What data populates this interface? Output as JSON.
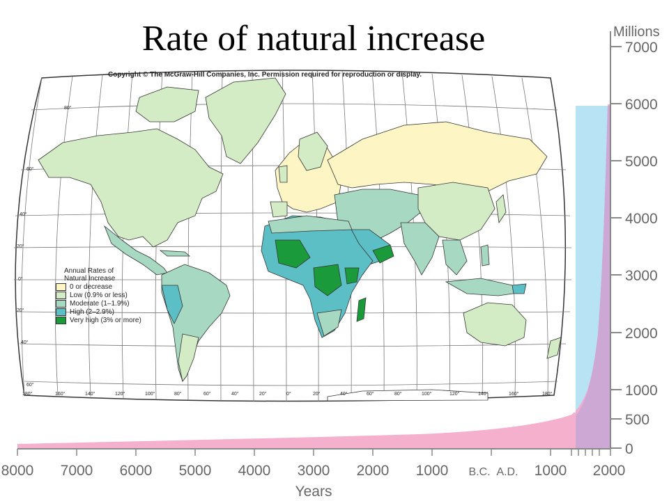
{
  "title": "Rate of natural increase",
  "copyright": "Copyright © The McGraw-Hill Companies, Inc. Permission required for reproduction or display.",
  "legend": {
    "title_line1": "Annual Rates of",
    "title_line2": "Natural Increase",
    "items": [
      {
        "label": "0 or decrease",
        "color": "#fdf6c4"
      },
      {
        "label": "Low (0.9% or less)",
        "color": "#d4ecc6"
      },
      {
        "label": "Moderate (1–1.9%)",
        "color": "#a7d9c2"
      },
      {
        "label": "High (2–2.9%)",
        "color": "#5cbfc6"
      },
      {
        "label": "Very high (3% or more)",
        "color": "#1a9a3a"
      }
    ]
  },
  "map_labels": {
    "lat": [
      "80°",
      "60°",
      "40°",
      "20°",
      "0°",
      "20°",
      "40°",
      "60°"
    ],
    "lon": [
      "180°",
      "160°",
      "140°",
      "120°",
      "100°",
      "80°",
      "60°",
      "40°",
      "20°",
      "0°",
      "20°",
      "40°",
      "60°",
      "80°",
      "100°",
      "120°",
      "140°",
      "160°",
      "180°"
    ]
  },
  "population_chart": {
    "y_unit": "Millions",
    "y_ticks": [
      "7000",
      "6000",
      "5000",
      "4000",
      "3000",
      "2000",
      "1000",
      "500",
      "0"
    ],
    "x_ticks": [
      "8000",
      "7000",
      "6000",
      "5000",
      "4000",
      "3000",
      "2000",
      "1000",
      "B.C.",
      "A.D.",
      "1000",
      "2000"
    ],
    "x_label": "Years",
    "colors": {
      "population_area": "#f4a7c9",
      "highlight": "#b7e3f4"
    }
  }
}
